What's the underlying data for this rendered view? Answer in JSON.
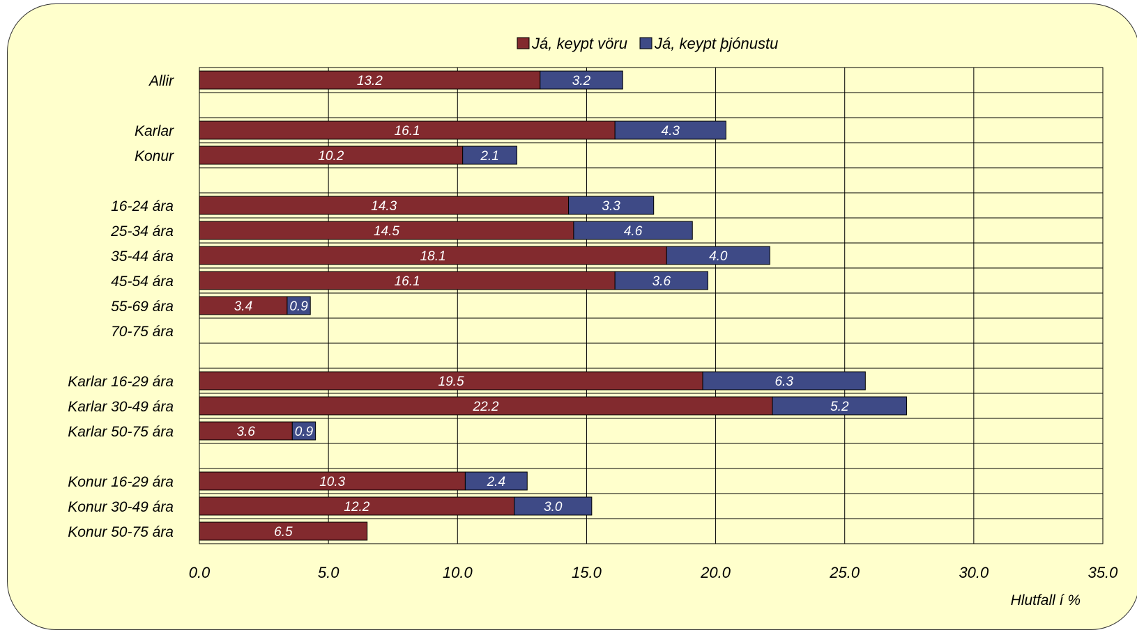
{
  "chart_data": {
    "type": "bar",
    "orientation": "horizontal",
    "stacked": true,
    "categories": [
      "Allir",
      "",
      "Karlar",
      "Konur",
      "",
      "16-24 ára",
      "25-34 ára",
      "35-44 ára",
      "45-54 ára",
      "55-69 ára",
      "70-75 ára",
      "",
      "Karlar 16-29 ára",
      "Karlar 30-49 ára",
      "Karlar 50-75 ára",
      "",
      "Konur 16-29 ára",
      "Konur 30-49 ára",
      "Konur 50-75 ára"
    ],
    "series": [
      {
        "name": "Já, keypt vöru",
        "color": "#822A2E",
        "values": [
          13.2,
          null,
          16.1,
          10.2,
          null,
          14.3,
          14.5,
          18.1,
          16.1,
          3.4,
          null,
          null,
          19.5,
          22.2,
          3.6,
          null,
          10.3,
          12.2,
          6.5
        ]
      },
      {
        "name": "Já, keypt þjónustu",
        "color": "#3E4A86",
        "values": [
          3.2,
          null,
          4.3,
          2.1,
          null,
          3.3,
          4.6,
          4.0,
          3.6,
          0.9,
          null,
          null,
          6.3,
          5.2,
          0.9,
          null,
          2.4,
          3.0,
          null
        ]
      }
    ],
    "value_labels": [
      [
        "13.2",
        "",
        "16.1",
        "10.2",
        "",
        "14.3",
        "14.5",
        "18.1",
        "16.1",
        "3.4",
        "",
        "",
        "19.5",
        "22.2",
        "3.6",
        "",
        "10.3",
        "12.2",
        "6.5"
      ],
      [
        "3.2",
        "",
        "4.3",
        "2.1",
        "",
        "3.3",
        "4.6",
        "4.0",
        "3.6",
        "0.9",
        "",
        "",
        "6.3",
        "5.2",
        "0.9",
        "",
        "2.4",
        "3.0",
        ""
      ]
    ],
    "xlim": [
      0,
      35
    ],
    "xticks": [
      0,
      5,
      10,
      15,
      20,
      25,
      30,
      35
    ],
    "xtick_labels": [
      "0.0",
      "5.0",
      "10.0",
      "15.0",
      "20.0",
      "25.0",
      "30.0",
      "35.0"
    ],
    "xlabel": "Hlutfall í %",
    "legend_position": "top",
    "grid": true,
    "plot_background": "#FFFFCC",
    "grid_color": "#000000"
  }
}
